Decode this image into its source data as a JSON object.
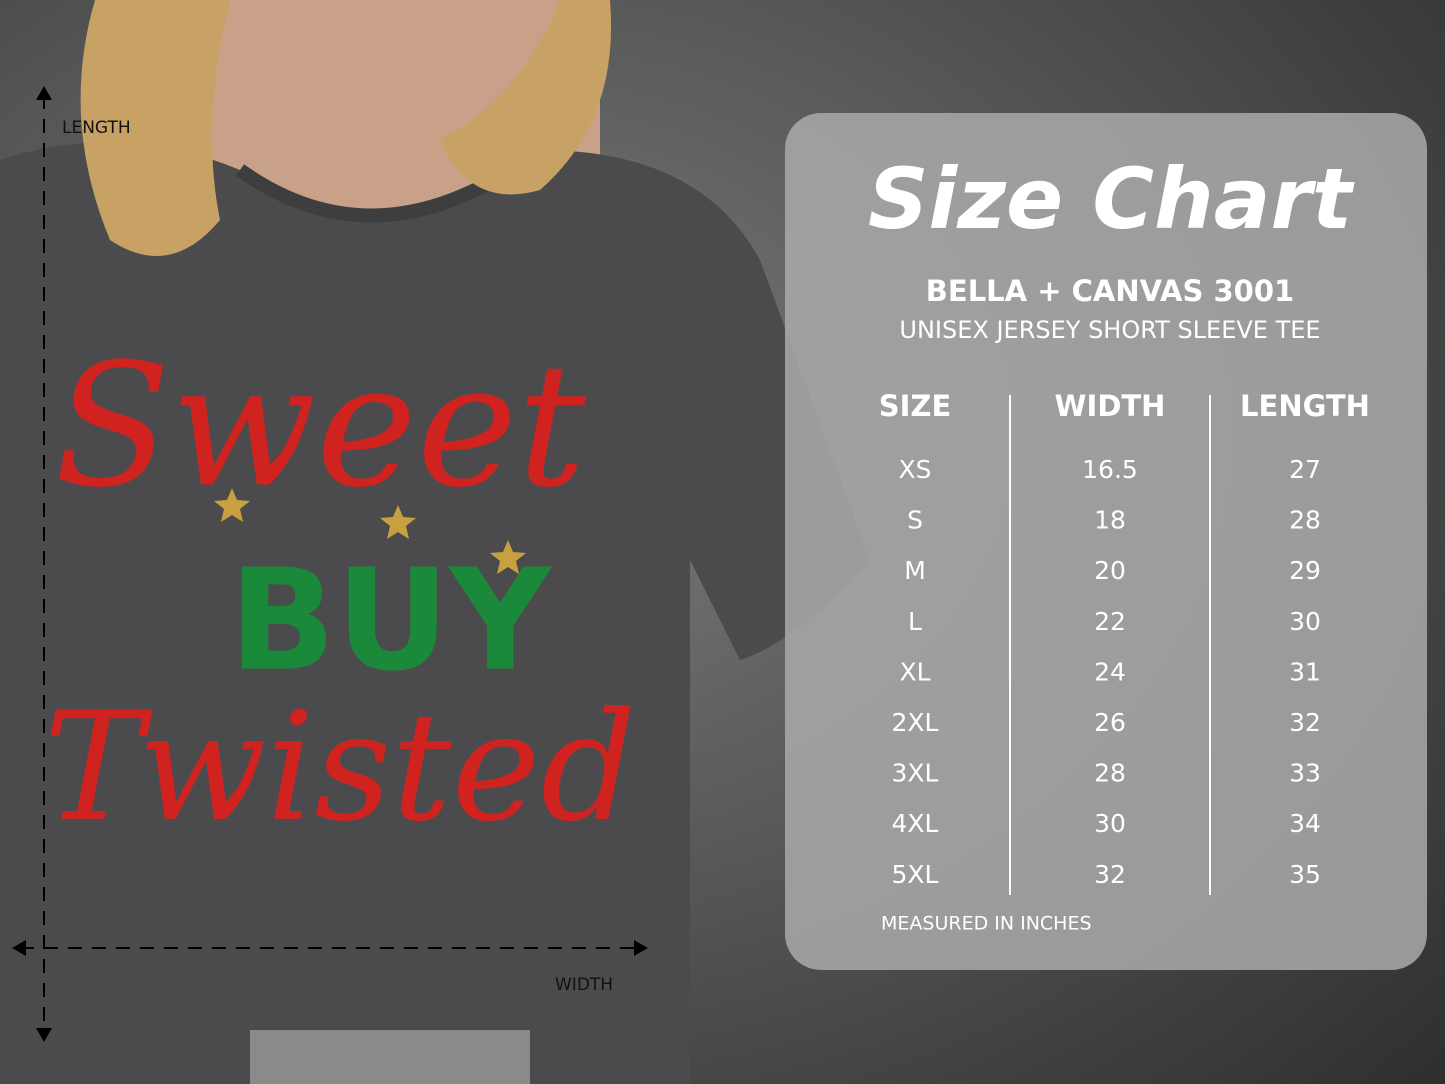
{
  "measurements": {
    "length": "LENGTH",
    "width": "WIDTH"
  },
  "design": {
    "lines": [
      "Sweet",
      "BUY",
      "Twisted"
    ]
  },
  "size_chart": {
    "title": "Size Chart",
    "product": "BELLA + CANVAS 3001",
    "description": "UNISEX JERSEY SHORT SLEEVE TEE",
    "columns": [
      "SIZE",
      "WIDTH",
      "LENGTH"
    ],
    "rows": [
      [
        "XS",
        16.5,
        27
      ],
      [
        "S",
        18,
        28
      ],
      [
        "M",
        20,
        29
      ],
      [
        "L",
        22,
        30
      ],
      [
        "XL",
        24,
        31
      ],
      [
        "2XL",
        26,
        32
      ],
      [
        "3XL",
        28,
        33
      ],
      [
        "4XL",
        30,
        34
      ],
      [
        "5XL",
        32,
        35
      ]
    ],
    "note": "MEASURED IN INCHES"
  }
}
